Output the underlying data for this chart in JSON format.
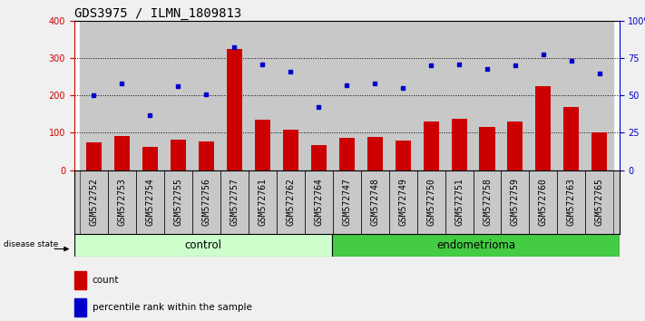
{
  "title": "GDS3975 / ILMN_1809813",
  "samples": [
    "GSM572752",
    "GSM572753",
    "GSM572754",
    "GSM572755",
    "GSM572756",
    "GSM572757",
    "GSM572761",
    "GSM572762",
    "GSM572764",
    "GSM572747",
    "GSM572748",
    "GSM572749",
    "GSM572750",
    "GSM572751",
    "GSM572758",
    "GSM572759",
    "GSM572760",
    "GSM572763",
    "GSM572765"
  ],
  "bar_values": [
    75,
    92,
    63,
    82,
    76,
    325,
    135,
    108,
    68,
    87,
    90,
    80,
    130,
    138,
    115,
    130,
    225,
    170,
    102
  ],
  "blue_values": [
    50,
    58,
    37,
    56.5,
    50.5,
    82.5,
    71,
    66,
    42,
    57,
    58,
    55,
    70.5,
    71,
    68,
    70.5,
    77.5,
    73.5,
    65
  ],
  "n_control": 9,
  "n_total": 19,
  "groups": [
    {
      "label": "control",
      "color": "#ccffcc"
    },
    {
      "label": "endometrioma",
      "color": "#44cc44"
    }
  ],
  "ylim_left": [
    0,
    400
  ],
  "ylim_right": [
    0,
    100
  ],
  "bar_color": "#cc0000",
  "dot_color": "#0000cc",
  "plot_bg_color": "#ffffff",
  "col_bg_color": "#c8c8c8",
  "title_fontsize": 10,
  "tick_fontsize": 7,
  "label_fontsize": 8.5
}
